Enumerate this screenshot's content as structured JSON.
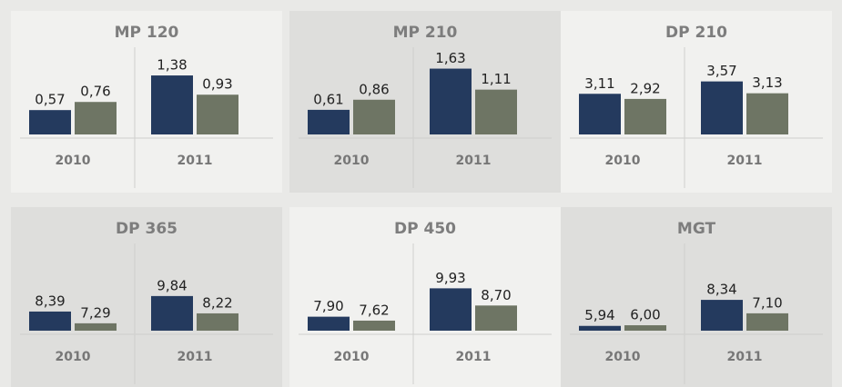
{
  "chart_data": [
    {
      "type": "bar",
      "title": "MP 120",
      "categories": [
        "2010",
        "2011"
      ],
      "ylim": [
        0,
        1.7
      ],
      "series": [
        {
          "color": "#243a5e",
          "values": [
            0.57,
            1.38
          ],
          "value_labels": [
            "0,57",
            "1,38"
          ]
        },
        {
          "color": "#6e7564",
          "values": [
            0.76,
            0.93
          ],
          "value_labels": [
            "0,76",
            "0,93"
          ]
        }
      ]
    },
    {
      "type": "bar",
      "title": "MP 210",
      "categories": [
        "2010",
        "2011"
      ],
      "ylim": [
        0,
        1.8
      ],
      "series": [
        {
          "color": "#243a5e",
          "values": [
            0.61,
            1.63
          ],
          "value_labels": [
            "0,61",
            "1,63"
          ]
        },
        {
          "color": "#6e7564",
          "values": [
            0.86,
            1.11
          ],
          "value_labels": [
            "0,86",
            "1,11"
          ]
        }
      ]
    },
    {
      "type": "bar",
      "title": "DP 210",
      "categories": [
        "2010",
        "2011"
      ],
      "ylim": [
        1.6,
        4.3
      ],
      "series": [
        {
          "color": "#243a5e",
          "values": [
            3.11,
            3.57
          ],
          "value_labels": [
            "3,11",
            "3,57"
          ]
        },
        {
          "color": "#6e7564",
          "values": [
            2.92,
            3.13
          ],
          "value_labels": [
            "2,92",
            "3,13"
          ]
        }
      ]
    },
    {
      "type": "bar",
      "title": "DP 365",
      "categories": [
        "2010",
        "2011"
      ],
      "ylim": [
        6.6,
        13.4
      ],
      "series": [
        {
          "color": "#243a5e",
          "values": [
            8.39,
            9.84
          ],
          "value_labels": [
            "8,39",
            "9,84"
          ]
        },
        {
          "color": "#6e7564",
          "values": [
            7.29,
            8.22
          ],
          "value_labels": [
            "7,29",
            "8,22"
          ]
        }
      ]
    },
    {
      "type": "bar",
      "title": "DP 450",
      "categories": [
        "2010",
        "2011"
      ],
      "ylim": [
        6.9,
        12.1
      ],
      "series": [
        {
          "color": "#243a5e",
          "values": [
            7.9,
            9.93
          ],
          "value_labels": [
            "7,90",
            "9,93"
          ]
        },
        {
          "color": "#6e7564",
          "values": [
            7.62,
            8.7
          ],
          "value_labels": [
            "7,62",
            "8,70"
          ]
        }
      ]
    },
    {
      "type": "bar",
      "title": "MGT",
      "categories": [
        "2010",
        "2011"
      ],
      "ylim": [
        5.5,
        12.2
      ],
      "series": [
        {
          "color": "#243a5e",
          "values": [
            5.94,
            8.34
          ],
          "value_labels": [
            "5,94",
            "8,34"
          ]
        },
        {
          "color": "#6e7564",
          "values": [
            6.0,
            7.1
          ],
          "value_labels": [
            "6,00",
            "7,10"
          ]
        }
      ]
    }
  ]
}
